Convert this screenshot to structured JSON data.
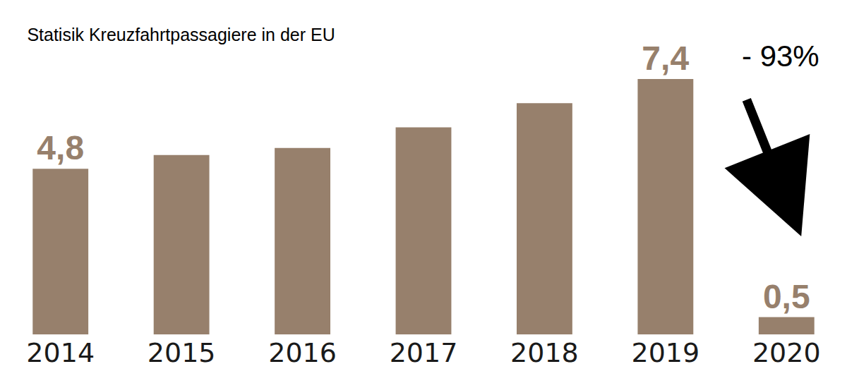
{
  "chart_data": {
    "type": "bar",
    "title": "Statisik Kreuzfahrtpassagiere in der EU",
    "categories": [
      "2014",
      "2015",
      "2016",
      "2017",
      "2018",
      "2019",
      "2020"
    ],
    "values": [
      4.8,
      5.2,
      5.4,
      6.0,
      6.7,
      7.4,
      0.5
    ],
    "value_labels": [
      "4,8",
      null,
      null,
      null,
      null,
      "7,4",
      "0,5"
    ],
    "data_labels": true,
    "color": "#97806c",
    "tick_labels": "x",
    "grid": false,
    "annotations": [
      "- 93%"
    ]
  }
}
